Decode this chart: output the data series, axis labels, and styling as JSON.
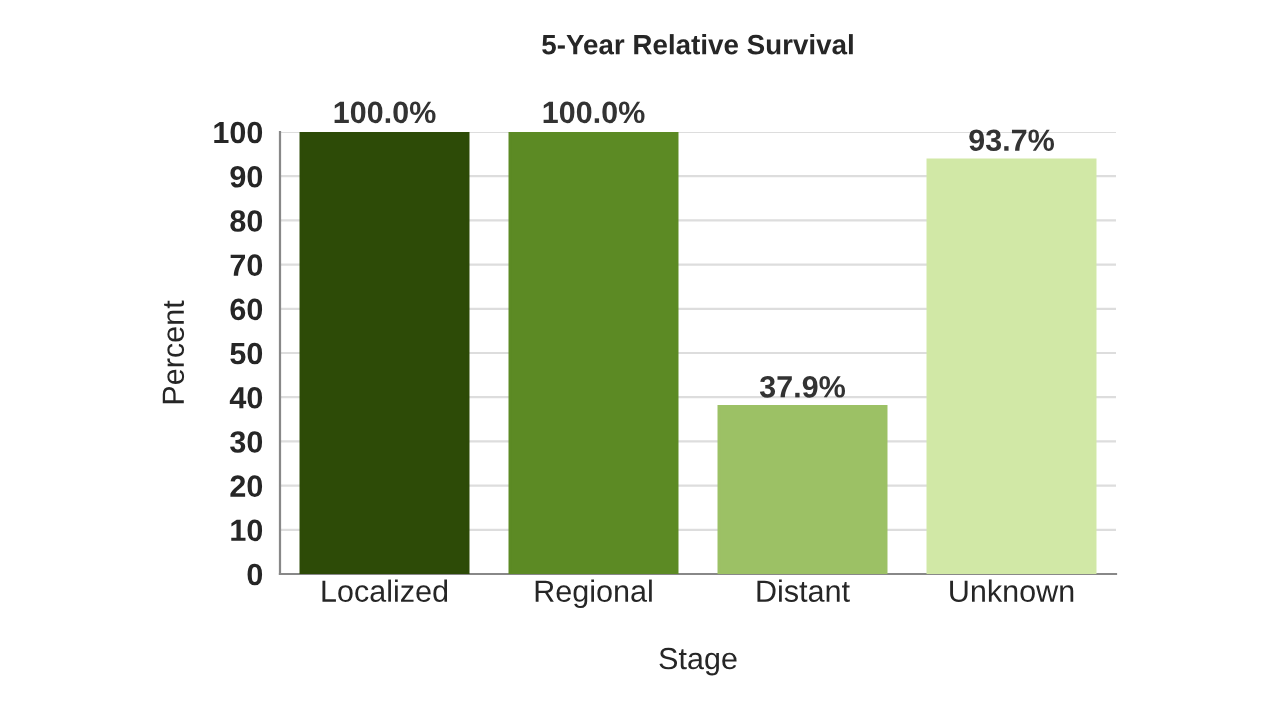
{
  "chart_data": {
    "type": "bar",
    "title": "5-Year Relative Survival",
    "xlabel": "Stage",
    "ylabel": "Percent",
    "categories": [
      "Localized",
      "Regional",
      "Distant",
      "Unknown"
    ],
    "values": [
      100.0,
      100.0,
      37.9,
      93.7
    ],
    "colors": [
      "#2d4b07",
      "#5c8a24",
      "#9cc165",
      "#d1e8a6"
    ],
    "value_labels": [
      "100.0%",
      "100.0%",
      "37.9%",
      "93.7%"
    ],
    "ylim": [
      0,
      100
    ],
    "yticks": [
      0,
      10,
      20,
      30,
      40,
      50,
      60,
      70,
      80,
      90,
      100
    ],
    "grid": "y",
    "legend": false
  }
}
